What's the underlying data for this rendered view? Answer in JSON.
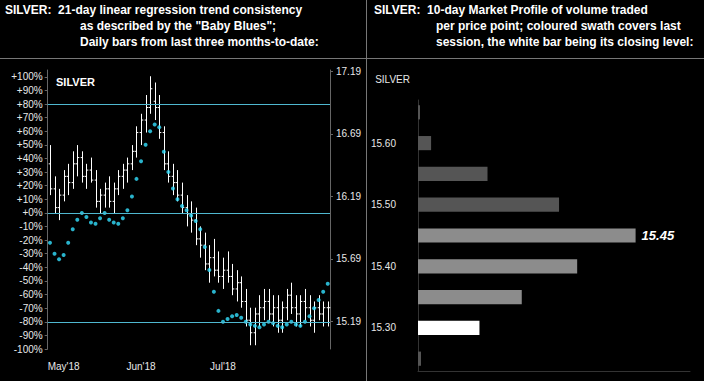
{
  "chart_data": [
    {
      "type": "ohlc",
      "title": [
        "SILVER:  21-day linear regression trend consistency",
        "as described by the \"Baby Blues\";",
        "Daily bars from last three months-to-date:"
      ],
      "categories": [
        null,
        null,
        null,
        "May'18",
        null,
        null,
        null,
        null,
        null,
        null,
        null,
        null,
        null,
        null,
        null,
        null,
        null,
        null,
        null,
        null,
        "Jun'18",
        null,
        null,
        null,
        null,
        null,
        null,
        null,
        null,
        null,
        null,
        null,
        null,
        null,
        null,
        null,
        null,
        null,
        "Jul'18",
        null,
        null,
        null,
        null,
        null,
        null,
        null,
        null,
        null,
        null,
        null,
        null,
        null,
        null,
        null,
        null,
        null,
        null,
        null,
        null,
        null,
        null,
        null
      ],
      "series": [
        {
          "name": "SILVER",
          "type": "ohlc",
          "axis": "y2",
          "color": "#ffffff",
          "open": [
            16.45,
            16.25,
            16.1,
            16.2,
            16.35,
            16.3,
            16.45,
            16.5,
            16.35,
            16.4,
            16.32,
            16.15,
            16.2,
            16.25,
            16.15,
            16.25,
            16.35,
            16.4,
            16.45,
            16.55,
            16.7,
            16.8,
            16.9,
            16.95,
            16.9,
            16.7,
            16.45,
            16.35,
            16.3,
            16.2,
            16.1,
            16.05,
            16.0,
            15.85,
            15.8,
            15.65,
            15.7,
            15.6,
            15.55,
            15.6,
            15.55,
            15.45,
            15.5,
            15.35,
            15.2,
            15.1,
            15.25,
            15.3,
            15.35,
            15.25,
            15.3,
            15.2,
            15.3,
            15.4,
            15.3,
            15.25,
            15.35,
            15.3,
            15.2,
            15.3,
            15.25,
            15.3
          ],
          "high": [
            16.6,
            16.35,
            16.25,
            16.4,
            16.45,
            16.55,
            16.6,
            16.55,
            16.45,
            16.5,
            16.4,
            16.25,
            16.3,
            16.35,
            16.3,
            16.4,
            16.45,
            16.5,
            16.6,
            16.75,
            16.85,
            17.0,
            17.15,
            17.1,
            17.0,
            16.75,
            16.55,
            16.45,
            16.4,
            16.3,
            16.2,
            16.15,
            16.1,
            15.95,
            15.9,
            15.8,
            15.85,
            15.75,
            15.7,
            15.75,
            15.65,
            15.6,
            15.55,
            15.45,
            15.3,
            15.3,
            15.4,
            15.45,
            15.45,
            15.4,
            15.4,
            15.35,
            15.45,
            15.5,
            15.4,
            15.4,
            15.45,
            15.4,
            15.35,
            15.4,
            15.35,
            15.35
          ],
          "low": [
            16.2,
            16.05,
            16.0,
            16.15,
            16.2,
            16.25,
            16.35,
            16.3,
            16.25,
            16.3,
            16.1,
            16.05,
            16.1,
            16.1,
            16.05,
            16.2,
            16.25,
            16.3,
            16.4,
            16.5,
            16.6,
            16.7,
            16.85,
            16.8,
            16.65,
            16.4,
            16.3,
            16.2,
            16.15,
            16.05,
            15.95,
            15.9,
            15.8,
            15.7,
            15.6,
            15.5,
            15.55,
            15.5,
            15.45,
            15.5,
            15.4,
            15.35,
            15.3,
            15.15,
            15.0,
            15.0,
            15.15,
            15.2,
            15.2,
            15.15,
            15.1,
            15.1,
            15.2,
            15.25,
            15.15,
            15.15,
            15.2,
            15.15,
            15.1,
            15.2,
            15.15,
            15.15
          ],
          "close": [
            16.25,
            16.1,
            16.2,
            16.35,
            16.3,
            16.45,
            16.5,
            16.35,
            16.4,
            16.32,
            16.15,
            16.2,
            16.25,
            16.15,
            16.25,
            16.35,
            16.4,
            16.45,
            16.55,
            16.7,
            16.8,
            16.9,
            17.05,
            16.9,
            16.7,
            16.45,
            16.35,
            16.3,
            16.2,
            16.1,
            16.05,
            16.0,
            15.85,
            15.8,
            15.65,
            15.7,
            15.6,
            15.55,
            15.6,
            15.55,
            15.45,
            15.5,
            15.35,
            15.2,
            15.1,
            15.25,
            15.3,
            15.35,
            15.25,
            15.3,
            15.2,
            15.3,
            15.4,
            15.3,
            15.25,
            15.35,
            15.3,
            15.2,
            15.3,
            15.25,
            15.3,
            15.3
          ]
        },
        {
          "type": "scatter",
          "axis": "y",
          "color": "#33e0ff",
          "marker": "circle",
          "values": [
            -22,
            -30,
            -34,
            -31,
            -22,
            -12,
            -5,
            0,
            -3,
            -7,
            -8,
            -4,
            0,
            -5,
            -7,
            -8,
            -4,
            2,
            12,
            25,
            38,
            50,
            60,
            65,
            63,
            45,
            30,
            18,
            10,
            5,
            2,
            -2,
            -6,
            -12,
            -25,
            -42,
            -58,
            -72,
            -80,
            -78,
            -76,
            -75,
            -77,
            -80,
            -82,
            -83,
            -84,
            -82,
            -80,
            -81,
            -83,
            -84,
            -82,
            -80,
            -82,
            -83,
            -80,
            -76,
            -70,
            -64,
            -58,
            -52
          ]
        }
      ],
      "ylim": [
        -100,
        105
      ],
      "yticks": [
        {
          "value": 100,
          "label": "+100%"
        },
        {
          "value": 90,
          "label": "+90%"
        },
        {
          "value": 80,
          "label": "+80%"
        },
        {
          "value": 70,
          "label": "+70%"
        },
        {
          "value": 60,
          "label": "+60%"
        },
        {
          "value": 50,
          "label": "+50%"
        },
        {
          "value": 40,
          "label": "+40%"
        },
        {
          "value": 30,
          "label": "+30%"
        },
        {
          "value": 20,
          "label": "+20%"
        },
        {
          "value": 10,
          "label": "+10%"
        },
        {
          "value": 0,
          "label": "+0%"
        },
        {
          "value": -10,
          "label": "-10%"
        },
        {
          "value": -20,
          "label": "-20%"
        },
        {
          "value": -30,
          "label": "-30%"
        },
        {
          "value": -40,
          "label": "-40%"
        },
        {
          "value": -50,
          "label": "-50%"
        },
        {
          "value": -60,
          "label": "-60%"
        },
        {
          "value": -70,
          "label": "-70%"
        },
        {
          "value": -80,
          "label": "-80%"
        },
        {
          "value": -90,
          "label": "-90%"
        },
        {
          "value": -100,
          "label": "-100%"
        }
      ],
      "y2lim": [
        14.97,
        17.2
      ],
      "y2ticks": [
        15.19,
        15.69,
        16.19,
        16.69,
        17.19
      ],
      "reference_lines": [
        80,
        0,
        -80
      ],
      "grid": false
    },
    {
      "type": "bar",
      "orientation": "horizontal",
      "title": [
        "SILVER:  10-day Market Profile of volume traded",
        "per price point; coloured swath covers last",
        "session, the white bar being its closing level:"
      ],
      "ylabel": "SILVER",
      "y": [
        15.25,
        15.3,
        15.35,
        15.4,
        15.45,
        15.5,
        15.55,
        15.6,
        15.65
      ],
      "values": [
        3,
        61,
        103,
        158,
        216,
        140,
        69,
        13,
        2
      ],
      "colors": [
        "#555555",
        "#ffffff",
        "#8c8c8c",
        "#8c8c8c",
        "#8c8c8c",
        "#555555",
        "#555555",
        "#555555",
        "#555555"
      ],
      "annotations": [
        {
          "text": "15.45",
          "y": 15.45
        }
      ],
      "xlim": [
        0,
        270
      ],
      "ylim": [
        15.23,
        15.67
      ],
      "yticks": [
        {
          "value": 15.3,
          "label": "15.30"
        },
        {
          "value": 15.4,
          "label": "15.40"
        },
        {
          "value": 15.5,
          "label": "15.50"
        },
        {
          "value": 15.6,
          "label": "15.60"
        }
      ],
      "tick_labels": "y",
      "grid": false
    }
  ]
}
